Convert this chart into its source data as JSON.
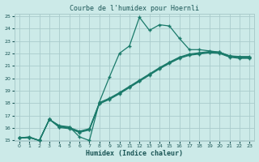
{
  "title": "Courbe de l'humidex pour Hoernli",
  "xlabel": "Humidex (Indice chaleur)",
  "bg_color": "#cceae8",
  "grid_color": "#aacccc",
  "line_color": "#1a7a6a",
  "xlim": [
    -0.5,
    23.5
  ],
  "ylim": [
    15,
    25.2
  ],
  "xtick_labels": [
    "0",
    "1",
    "2",
    "3",
    "4",
    "5",
    "6",
    "7",
    "8",
    "9",
    "10",
    "11",
    "12",
    "13",
    "14",
    "15",
    "16",
    "17",
    "18",
    "19",
    "20",
    "21",
    "22",
    "23"
  ],
  "ytick_labels": [
    "15",
    "16",
    "17",
    "18",
    "19",
    "20",
    "21",
    "22",
    "23",
    "24",
    "25"
  ],
  "xtick_vals": [
    0,
    1,
    2,
    3,
    4,
    5,
    6,
    7,
    8,
    9,
    10,
    11,
    12,
    13,
    14,
    15,
    16,
    17,
    18,
    19,
    20,
    21,
    22,
    23
  ],
  "ytick_vals": [
    15,
    16,
    17,
    18,
    19,
    20,
    21,
    22,
    23,
    24,
    25
  ],
  "line1_x": [
    0,
    1,
    2,
    3,
    4,
    5,
    6,
    7,
    8,
    9,
    10,
    11,
    12,
    13,
    14,
    15,
    16,
    17,
    18,
    19,
    20,
    21,
    22,
    23
  ],
  "line1_y": [
    15.2,
    15.3,
    15.0,
    16.7,
    16.2,
    16.1,
    15.3,
    15.0,
    18.1,
    20.1,
    22.0,
    22.6,
    24.9,
    23.85,
    24.3,
    24.2,
    23.2,
    22.3,
    22.3,
    22.2,
    22.1,
    21.8,
    21.75,
    21.75
  ],
  "line2_x": [
    0,
    1,
    2,
    3,
    4,
    5,
    6,
    7,
    8,
    9,
    10,
    11,
    12,
    13,
    14,
    15,
    16,
    17,
    18,
    19,
    20,
    21,
    22,
    23
  ],
  "line2_y": [
    15.2,
    15.25,
    15.0,
    16.7,
    16.15,
    16.05,
    15.75,
    15.95,
    18.05,
    18.4,
    18.85,
    19.35,
    19.85,
    20.35,
    20.85,
    21.3,
    21.7,
    21.95,
    22.05,
    22.15,
    22.1,
    21.8,
    21.7,
    21.7
  ],
  "line3_x": [
    0,
    1,
    2,
    3,
    4,
    5,
    6,
    7,
    8,
    9,
    10,
    11,
    12,
    13,
    14,
    15,
    16,
    17,
    18,
    19,
    20,
    21,
    22,
    23
  ],
  "line3_y": [
    15.2,
    15.25,
    15.0,
    16.7,
    16.1,
    16.0,
    15.7,
    15.9,
    18.0,
    18.35,
    18.8,
    19.3,
    19.8,
    20.3,
    20.8,
    21.25,
    21.65,
    21.9,
    22.0,
    22.1,
    22.05,
    21.75,
    21.65,
    21.65
  ],
  "line4_x": [
    0,
    1,
    2,
    3,
    4,
    5,
    6,
    7,
    8,
    9,
    10,
    11,
    12,
    13,
    14,
    15,
    16,
    17,
    18,
    19,
    20,
    21,
    22,
    23
  ],
  "line4_y": [
    15.2,
    15.25,
    15.0,
    16.7,
    16.05,
    15.95,
    15.65,
    15.85,
    17.95,
    18.3,
    18.75,
    19.25,
    19.75,
    20.25,
    20.75,
    21.2,
    21.6,
    21.85,
    21.95,
    22.05,
    22.0,
    21.7,
    21.6,
    21.6
  ]
}
